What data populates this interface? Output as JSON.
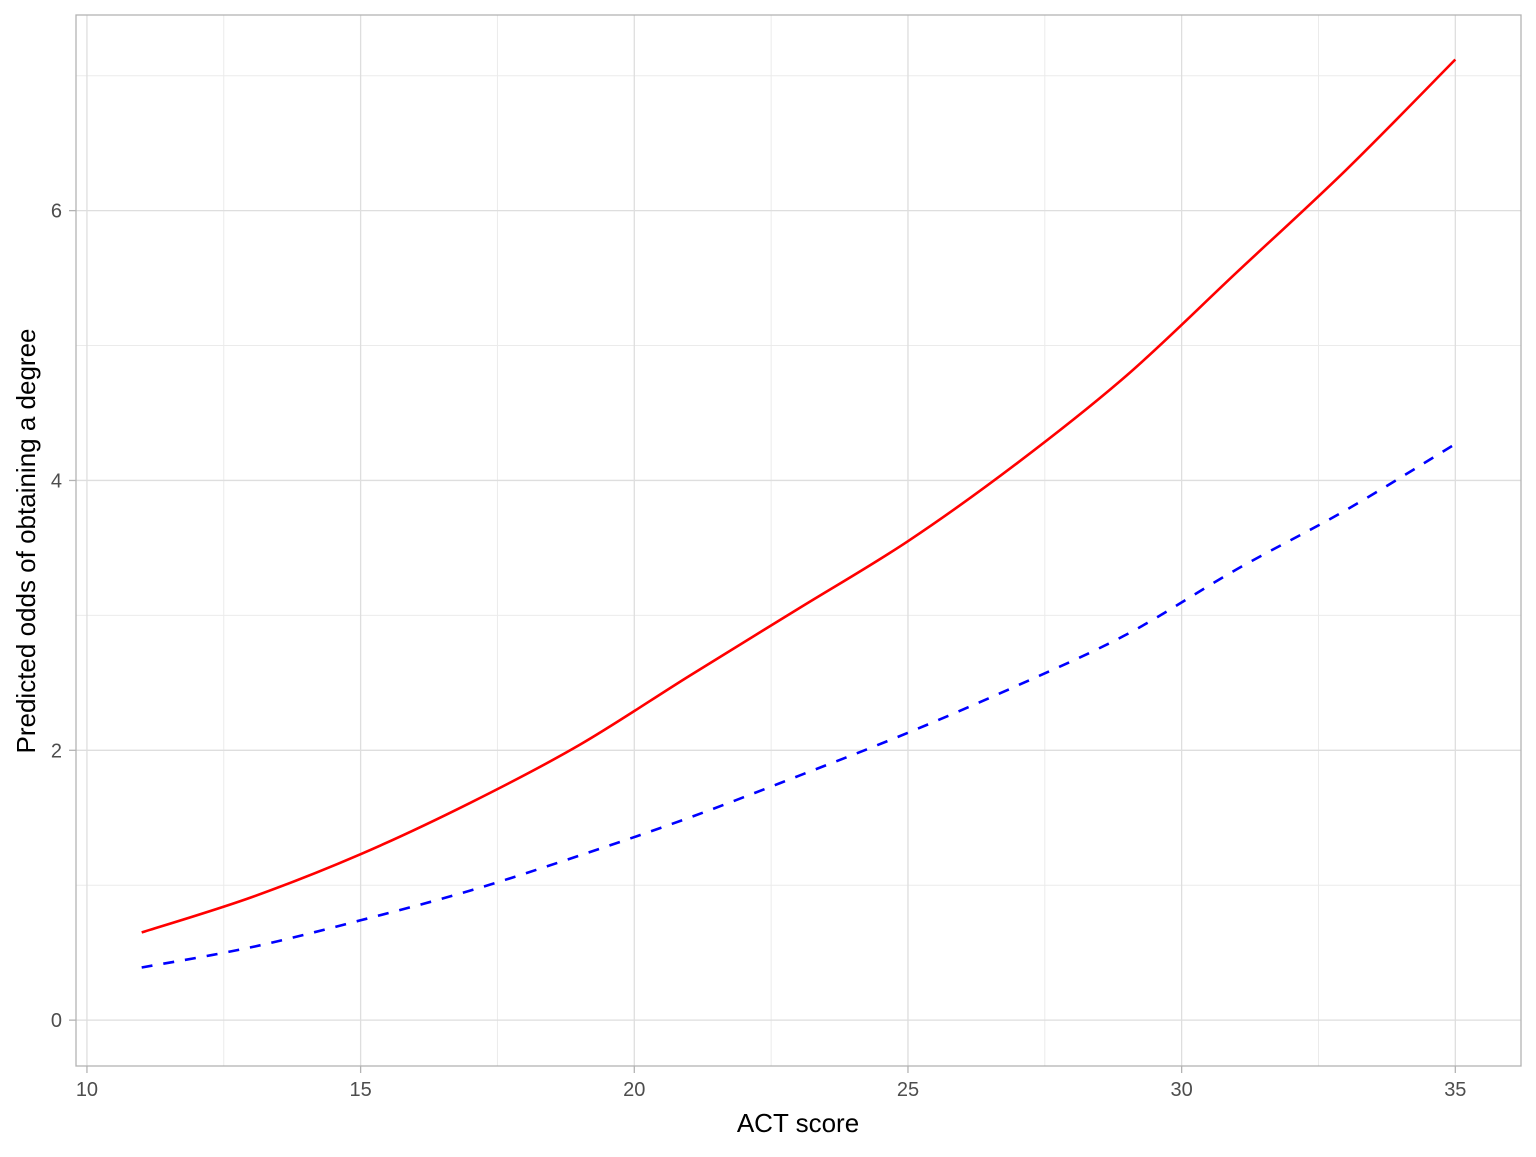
{
  "chart_data": {
    "type": "line",
    "title": "",
    "xlabel": "ACT score",
    "ylabel": "Predicted odds of obtaining a degree",
    "xlim": [
      9.8,
      36.2
    ],
    "ylim": [
      -0.34,
      7.45
    ],
    "x_ticks": [
      10,
      15,
      20,
      25,
      30,
      35
    ],
    "x_tick_labels": [
      "10",
      "15",
      "20",
      "25",
      "30",
      "35"
    ],
    "x_minor_ticks": [
      12.5,
      17.5,
      22.5,
      27.5,
      32.5
    ],
    "y_ticks": [
      0,
      2,
      4,
      6
    ],
    "y_tick_labels": [
      "0",
      "2",
      "4",
      "6"
    ],
    "y_minor_ticks": [
      1,
      3,
      5,
      7
    ],
    "grid": true,
    "legend": "none",
    "series": [
      {
        "color": "#ff0000",
        "line_style": "solid",
        "x": [
          11,
          13,
          15,
          17,
          19,
          21,
          23,
          25,
          27,
          29,
          31,
          33,
          35
        ],
        "y": [
          0.65,
          0.91,
          1.23,
          1.61,
          2.04,
          2.55,
          3.05,
          3.55,
          4.13,
          4.78,
          5.54,
          6.3,
          7.12
        ]
      },
      {
        "color": "#0000ff",
        "line_style": "dashed",
        "x": [
          11,
          13,
          15,
          17,
          19,
          21,
          23,
          25,
          27,
          29,
          31,
          33,
          35
        ],
        "y": [
          0.39,
          0.54,
          0.74,
          0.96,
          1.22,
          1.5,
          1.81,
          2.13,
          2.48,
          2.86,
          3.34,
          3.78,
          4.27
        ]
      }
    ]
  }
}
